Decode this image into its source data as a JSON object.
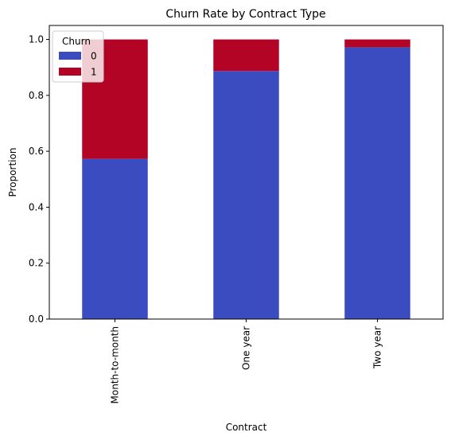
{
  "chart_data": {
    "type": "bar",
    "stacked": true,
    "title": "Churn Rate by Contract Type",
    "xlabel": "Contract",
    "ylabel": "Proportion",
    "categories": [
      "Month-to-month",
      "One year",
      "Two year"
    ],
    "series": [
      {
        "name": "0",
        "values": [
          0.573,
          0.887,
          0.972
        ],
        "color": "#3b4cc0"
      },
      {
        "name": "1",
        "values": [
          0.427,
          0.113,
          0.028
        ],
        "color": "#b40426"
      }
    ],
    "ylim": [
      0,
      1.05
    ],
    "yticks": [
      0.0,
      0.2,
      0.4,
      0.6,
      0.8,
      1.0
    ],
    "ytick_labels": [
      "0.0",
      "0.2",
      "0.4",
      "0.6",
      "0.8",
      "1.0"
    ],
    "legend": {
      "title": "Churn",
      "placement": "top-left"
    },
    "grid": false
  }
}
